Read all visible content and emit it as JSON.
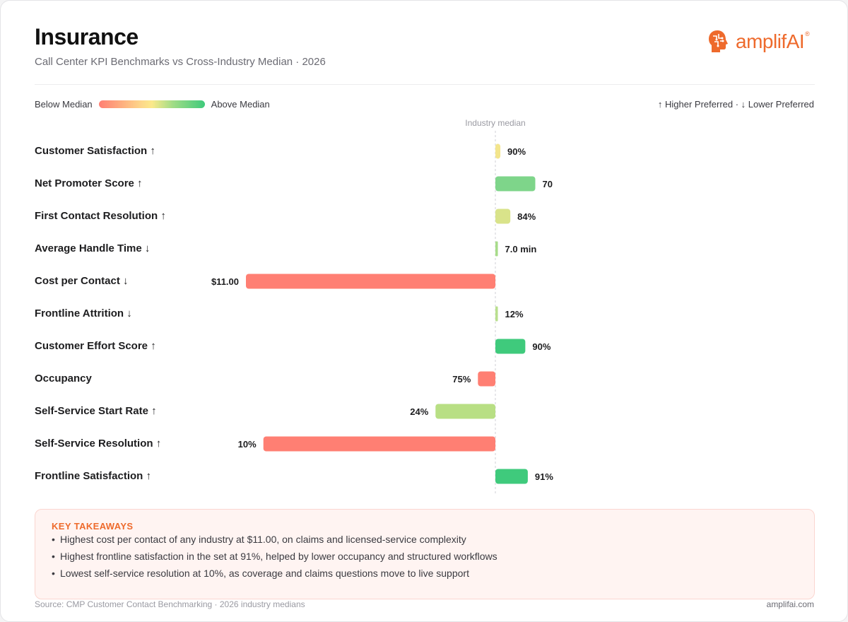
{
  "header": {
    "title": "Insurance",
    "subtitle": "Call Center KPI Benchmarks vs Cross-Industry Median · 2026"
  },
  "logo": {
    "text": "amplifAI",
    "reg": "®",
    "icon": "brain-head-icon",
    "color": "#ee6a2c"
  },
  "legend": {
    "below": "Below Median",
    "above": "Above Median",
    "preference": "↑ Higher Preferred · ↓ Lower Preferred",
    "median_label": "Industry median"
  },
  "chart_data": {
    "type": "bar",
    "orientation": "horizontal-diverging",
    "baseline": "Industry median",
    "xlim": [
      -1,
      1
    ],
    "categories": [
      "Customer Satisfaction ↑",
      "Net Promoter Score ↑",
      "First Contact Resolution ↑",
      "Average Handle Time ↓",
      "Cost per Contact ↓",
      "Frontline Attrition ↓",
      "Customer Effort Score ↑",
      "Occupancy",
      "Self-Service Start Rate ↑",
      "Self-Service Resolution ↑",
      "Frontline Satisfaction ↑"
    ],
    "values_labels": [
      "90%",
      "70",
      "84%",
      "7.0 min",
      "$11.00",
      "12%",
      "90%",
      "75%",
      "24%",
      "10%",
      "91%"
    ],
    "deviation": [
      0.02,
      0.16,
      0.06,
      0.01,
      -1.0,
      0.01,
      0.12,
      -0.07,
      -0.24,
      -0.93,
      0.13
    ],
    "colors": [
      "#f3e58c",
      "#7ed58a",
      "#d9e38a",
      "#a8dc8a",
      "#ff7f73",
      "#b9df8e",
      "#3fca7c",
      "#ff7f73",
      "#b8df84",
      "#ff7f73",
      "#3fca7c"
    ]
  },
  "takeaways": {
    "title": "KEY TAKEAWAYS",
    "items": [
      "Highest cost per contact of any industry at $11.00, on claims and licensed-service complexity",
      "Highest frontline satisfaction in the set at 91%, helped by lower occupancy and structured workflows",
      "Lowest self-service resolution at 10%, as coverage and claims questions move to live support"
    ]
  },
  "footer": {
    "source": "Source: CMP Customer Contact Benchmarking · 2026 industry medians",
    "site": "amplifai.com"
  }
}
